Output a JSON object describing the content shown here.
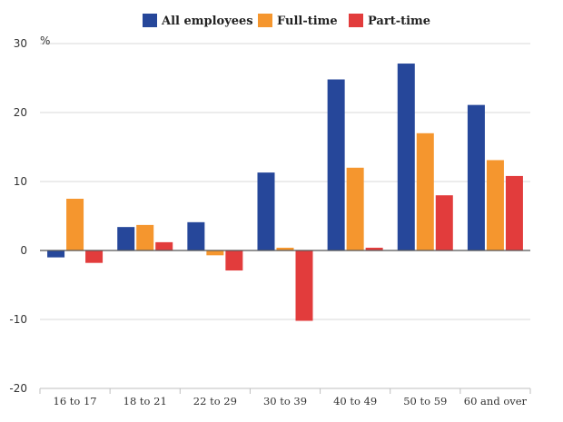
{
  "chart_data": {
    "type": "bar",
    "categories": [
      "16 to 17",
      "18 to 21",
      "22 to 29",
      "30 to 39",
      "40 to 49",
      "50 to 59",
      "60 and over"
    ],
    "series": [
      {
        "name": "All employees",
        "color": "#26479a",
        "values": [
          -1.0,
          3.4,
          4.1,
          11.3,
          24.8,
          27.1,
          21.1
        ]
      },
      {
        "name": "Full-time",
        "color": "#f5962e",
        "values": [
          7.5,
          3.7,
          -0.7,
          0.4,
          12.0,
          17.0,
          13.1
        ]
      },
      {
        "name": "Part-time",
        "color": "#e23c3c",
        "values": [
          -1.8,
          1.2,
          -2.9,
          -10.2,
          0.4,
          8.0,
          10.8
        ]
      }
    ],
    "y_unit": "%",
    "ylim": [
      -20,
      30
    ],
    "yticks": [
      -20,
      -10,
      0,
      10,
      20,
      30
    ],
    "grid": true,
    "legend_position": "top"
  }
}
